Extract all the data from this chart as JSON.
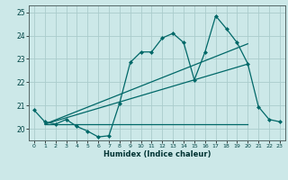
{
  "xlabel": "Humidex (Indice chaleur)",
  "bg_color": "#cce8e8",
  "line_color": "#006868",
  "grid_color": "#aacccc",
  "xlim": [
    -0.5,
    23.5
  ],
  "ylim": [
    19.5,
    25.3
  ],
  "xticks": [
    0,
    1,
    2,
    3,
    4,
    5,
    6,
    7,
    8,
    9,
    10,
    11,
    12,
    13,
    14,
    15,
    16,
    17,
    18,
    19,
    20,
    21,
    22,
    23
  ],
  "yticks": [
    20,
    21,
    22,
    23,
    24,
    25
  ],
  "main_x": [
    0,
    1,
    2,
    3,
    4,
    5,
    6,
    7,
    8,
    9,
    10,
    11,
    12,
    13,
    14,
    15,
    16,
    17,
    18,
    19,
    20,
    21,
    22,
    23
  ],
  "main_y": [
    20.8,
    20.3,
    20.2,
    20.4,
    20.1,
    19.9,
    19.65,
    19.7,
    21.1,
    22.85,
    23.3,
    23.3,
    23.9,
    24.1,
    23.7,
    22.1,
    23.3,
    24.85,
    24.3,
    23.7,
    22.8,
    20.95,
    20.4,
    20.3
  ],
  "line1_x": [
    1,
    20
  ],
  "line1_y": [
    20.2,
    23.65
  ],
  "line2_x": [
    1,
    20
  ],
  "line2_y": [
    20.2,
    22.78
  ],
  "line3_x": [
    1,
    20
  ],
  "line3_y": [
    20.2,
    20.2
  ]
}
